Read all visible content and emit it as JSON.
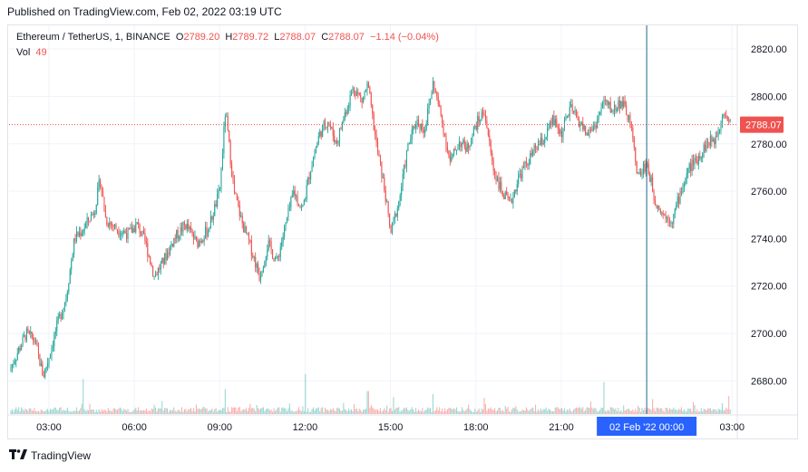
{
  "header": {
    "published": "Published on TradingView.com, Feb 02, 2022 03:19 UTC"
  },
  "legend": {
    "symbol": "Ethereum / TetherUS, 1, BINANCE",
    "open_label": "O",
    "open": "2789.20",
    "high_label": "H",
    "high": "2789.72",
    "low_label": "L",
    "low": "2788.07",
    "close_label": "C",
    "close": "2788.07",
    "change": "−1.14 (−0.04%)",
    "vol_label": "Vol",
    "vol": "49"
  },
  "brand": {
    "name": "TradingView",
    "logo": "tradingview-logo-icon"
  },
  "colors": {
    "up": "#26a69a",
    "down": "#ef5350",
    "price_line": "#ef5350",
    "crosshair": "#1e6b8c",
    "time_highlight": "#2962ff",
    "grid": "#f0f3fa",
    "text": "#131722"
  },
  "chart_data": {
    "type": "candlestick",
    "title": "Ethereum / TetherUS, 1, BINANCE",
    "y_ticks": [
      2680,
      2700,
      2720,
      2740,
      2760,
      2780,
      2800,
      2820
    ],
    "y_tick_labels": [
      "2680.00",
      "2700.00",
      "2720.00",
      "2740.00",
      "2760.00",
      "2780.00",
      "2800.00",
      "2820.00"
    ],
    "ylim": [
      2666,
      2830
    ],
    "x_range_hours": [
      1.6,
      27.15
    ],
    "x_ticks": [
      {
        "label": "03:00",
        "h": 3
      },
      {
        "label": "06:00",
        "h": 6
      },
      {
        "label": "09:00",
        "h": 9
      },
      {
        "label": "12:00",
        "h": 12
      },
      {
        "label": "15:00",
        "h": 15
      },
      {
        "label": "18:00",
        "h": 18
      },
      {
        "label": "21:00",
        "h": 21
      },
      {
        "label": "03:00",
        "h": 27
      }
    ],
    "crosshair": {
      "label": "02 Feb '22   00:00",
      "h": 24
    },
    "last_price": {
      "value": 2788.07,
      "label": "2788.07"
    },
    "grid": true,
    "price_path": [
      [
        1.6,
        2684
      ],
      [
        1.9,
        2692
      ],
      [
        2.2,
        2700
      ],
      [
        2.5,
        2697
      ],
      [
        2.8,
        2682
      ],
      [
        3.0,
        2690
      ],
      [
        3.3,
        2704
      ],
      [
        3.6,
        2715
      ],
      [
        3.9,
        2740
      ],
      [
        4.2,
        2744
      ],
      [
        4.6,
        2752
      ],
      [
        4.8,
        2765
      ],
      [
        5.0,
        2748
      ],
      [
        5.4,
        2744
      ],
      [
        5.8,
        2742
      ],
      [
        6.1,
        2746
      ],
      [
        6.4,
        2738
      ],
      [
        6.7,
        2724
      ],
      [
        7.0,
        2730
      ],
      [
        7.4,
        2740
      ],
      [
        7.8,
        2746
      ],
      [
        8.2,
        2738
      ],
      [
        8.6,
        2744
      ],
      [
        9.0,
        2760
      ],
      [
        9.2,
        2794
      ],
      [
        9.5,
        2760
      ],
      [
        9.8,
        2746
      ],
      [
        10.1,
        2736
      ],
      [
        10.4,
        2724
      ],
      [
        10.7,
        2738
      ],
      [
        11.0,
        2730
      ],
      [
        11.3,
        2745
      ],
      [
        11.6,
        2760
      ],
      [
        11.9,
        2752
      ],
      [
        12.2,
        2770
      ],
      [
        12.5,
        2784
      ],
      [
        12.8,
        2790
      ],
      [
        13.1,
        2780
      ],
      [
        13.4,
        2793
      ],
      [
        13.7,
        2804
      ],
      [
        14.0,
        2798
      ],
      [
        14.2,
        2805
      ],
      [
        14.5,
        2780
      ],
      [
        14.8,
        2760
      ],
      [
        15.0,
        2742
      ],
      [
        15.3,
        2756
      ],
      [
        15.6,
        2778
      ],
      [
        15.9,
        2790
      ],
      [
        16.2,
        2786
      ],
      [
        16.5,
        2806
      ],
      [
        16.8,
        2790
      ],
      [
        17.1,
        2772
      ],
      [
        17.4,
        2781
      ],
      [
        17.7,
        2778
      ],
      [
        18.0,
        2788
      ],
      [
        18.3,
        2794
      ],
      [
        18.6,
        2770
      ],
      [
        18.9,
        2760
      ],
      [
        19.2,
        2754
      ],
      [
        19.5,
        2766
      ],
      [
        19.8,
        2772
      ],
      [
        20.1,
        2778
      ],
      [
        20.4,
        2782
      ],
      [
        20.7,
        2790
      ],
      [
        21.0,
        2784
      ],
      [
        21.3,
        2795
      ],
      [
        21.6,
        2790
      ],
      [
        21.9,
        2784
      ],
      [
        22.2,
        2788
      ],
      [
        22.5,
        2798
      ],
      [
        22.8,
        2794
      ],
      [
        23.1,
        2798
      ],
      [
        23.4,
        2790
      ],
      [
        23.7,
        2766
      ],
      [
        24.0,
        2772
      ],
      [
        24.3,
        2756
      ],
      [
        24.6,
        2750
      ],
      [
        24.9,
        2748
      ],
      [
        25.2,
        2760
      ],
      [
        25.5,
        2770
      ],
      [
        25.8,
        2774
      ],
      [
        26.1,
        2780
      ],
      [
        26.4,
        2782
      ],
      [
        26.7,
        2794
      ],
      [
        26.95,
        2788.07
      ]
    ],
    "volume_spikes": [
      {
        "h": 4.2,
        "v": 0.35
      },
      {
        "h": 9.2,
        "v": 0.25
      },
      {
        "h": 12.0,
        "v": 0.4
      },
      {
        "h": 14.2,
        "v": 0.23
      },
      {
        "h": 15.1,
        "v": 0.17
      },
      {
        "h": 16.5,
        "v": 0.2
      },
      {
        "h": 18.3,
        "v": 0.16
      },
      {
        "h": 22.5,
        "v": 0.32
      },
      {
        "h": 24.2,
        "v": 0.15
      },
      {
        "h": 26.9,
        "v": 0.18
      }
    ]
  }
}
